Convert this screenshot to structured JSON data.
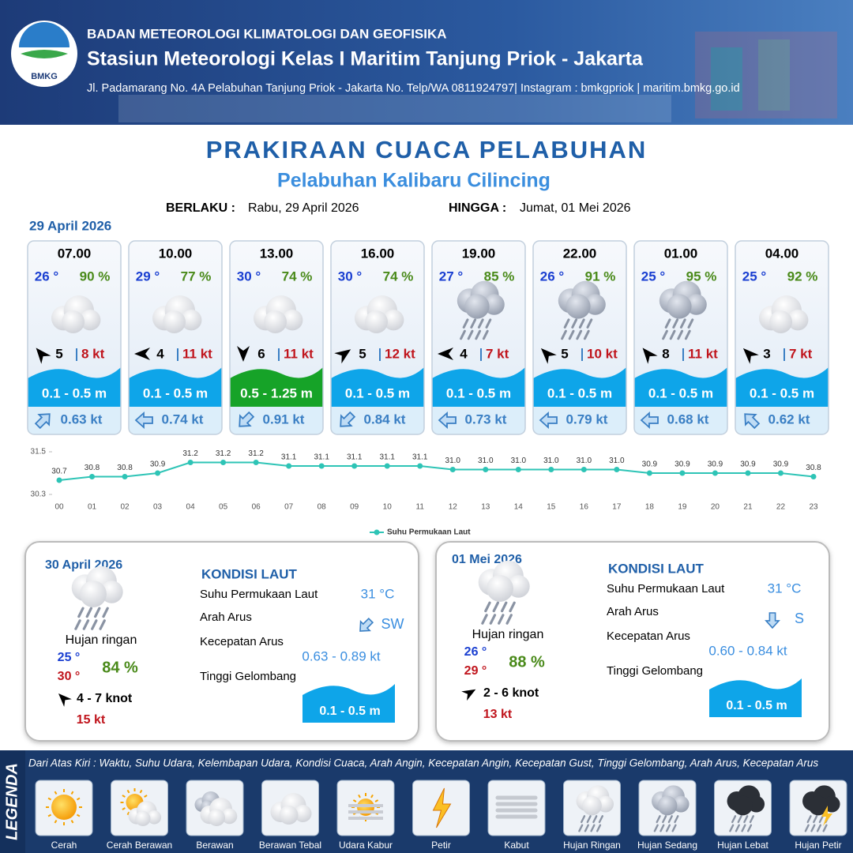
{
  "header": {
    "logo": "BMKG",
    "org": "BADAN METEOROLOGI KLIMATOLOGI DAN GEOFISIKA",
    "station": "Stasiun Meteorologi Kelas I Maritim Tanjung Priok - Jakarta",
    "address": "Jl. Padamarang No. 4A Pelabuhan Tanjung Priok - Jakarta No. Telp/WA 0811924797| Instagram : bmkgpriok | maritim.bmkg.go.id"
  },
  "title": "PRAKIRAAN CUACA PELABUHAN",
  "subtitle": "Pelabuhan Kalibaru Cilincing",
  "valid": {
    "from_label": "BERLAKU :",
    "from": "Rabu, 29 April 2026",
    "to_label": "HINGGA :",
    "to": "Jumat, 01 Mei 2026"
  },
  "day1": {
    "date": "29 April 2026",
    "forecasts": [
      {
        "time": "07.00",
        "temp": "26 °",
        "humidity": "90 %",
        "wind": "5",
        "gust": "8 kt",
        "wave": "0.1 - 0.5 m",
        "wave_color": "#0ea5e9",
        "current": "0.63 kt"
      },
      {
        "time": "10.00",
        "temp": "29 °",
        "humidity": "77 %",
        "wind": "4",
        "gust": "11 kt",
        "wave": "0.1 - 0.5 m",
        "wave_color": "#0ea5e9",
        "current": "0.74 kt"
      },
      {
        "time": "13.00",
        "temp": "30 °",
        "humidity": "74 %",
        "wind": "6",
        "gust": "11 kt",
        "wave": "0.5 - 1.25 m",
        "wave_color": "#16a328",
        "current": "0.91 kt"
      },
      {
        "time": "16.00",
        "temp": "30 °",
        "humidity": "74 %",
        "wind": "5",
        "gust": "12 kt",
        "wave": "0.1 - 0.5 m",
        "wave_color": "#0ea5e9",
        "current": "0.84 kt"
      },
      {
        "time": "19.00",
        "temp": "27 °",
        "humidity": "85 %",
        "wind": "4",
        "gust": "7 kt",
        "wave": "0.1 - 0.5 m",
        "wave_color": "#0ea5e9",
        "current": "0.73 kt"
      },
      {
        "time": "22.00",
        "temp": "26 °",
        "humidity": "91 %",
        "wind": "5",
        "gust": "10 kt",
        "wave": "0.1 - 0.5 m",
        "wave_color": "#0ea5e9",
        "current": "0.79 kt"
      },
      {
        "time": "01.00",
        "temp": "25 °",
        "humidity": "95 %",
        "wind": "8",
        "gust": "11 kt",
        "wave": "0.1 - 0.5 m",
        "wave_color": "#0ea5e9",
        "current": "0.68 kt"
      },
      {
        "time": "04.00",
        "temp": "25 °",
        "humidity": "92 %",
        "wind": "3",
        "gust": "7 kt",
        "wave": "0.1 - 0.5 m",
        "wave_color": "#0ea5e9",
        "current": "0.62 kt"
      }
    ]
  },
  "chart_data": {
    "type": "line",
    "categories": [
      "00",
      "01",
      "02",
      "03",
      "04",
      "05",
      "06",
      "07",
      "08",
      "09",
      "10",
      "11",
      "12",
      "13",
      "14",
      "15",
      "16",
      "17",
      "18",
      "19",
      "20",
      "21",
      "22",
      "23"
    ],
    "series": [
      {
        "name": "Suhu Permukaan Laut",
        "color": "#2ec4b6",
        "values": [
          30.7,
          30.8,
          30.8,
          30.9,
          31.2,
          31.2,
          31.2,
          31.1,
          31.1,
          31.1,
          31.1,
          31.1,
          31,
          31,
          31,
          31,
          31,
          31,
          30.9,
          30.9,
          30.9,
          30.9,
          30.9,
          30.8
        ],
        "value_labels": [
          "30.7",
          "30.8",
          "30.8",
          "30.9",
          "31.2",
          "31.2",
          "31.2",
          "31.1",
          "31.1",
          "31.1",
          "31.1",
          "31.1",
          "31.0",
          "31.0",
          "31.0",
          "31.0",
          "31.0",
          "31.0",
          "30.9",
          "30.9",
          "30.9",
          "30.9",
          "30.9",
          "30.8"
        ]
      }
    ],
    "ylim": [
      30.3,
      31.5
    ],
    "yticks": [
      30.3,
      31.5
    ],
    "legend": "bottom"
  },
  "days": [
    {
      "date": "30 April 2026",
      "condition": "Hujan ringan",
      "temp_min": "25 °",
      "temp_max": "30 °",
      "humidity": "84 %",
      "wind": "4  - 7 knot",
      "gust": "15 kt",
      "sea_title": "KONDISI LAUT",
      "sst_label": "Suhu Permukaan Laut",
      "sst": "31 °C",
      "dir_label": "Arah Arus",
      "dir": "SW",
      "speed_label": "Kecepatan Arus",
      "speed": "0.63  - 0.89 kt",
      "wave_label": "Tinggi Gelombang",
      "wave": "0.1 - 0.5 m"
    },
    {
      "date": "01 Mei 2026",
      "condition": "Hujan ringan",
      "temp_min": "26 °",
      "temp_max": "29 °",
      "humidity": "88 %",
      "wind": "2  - 6 knot",
      "gust": "13 kt",
      "sea_title": "KONDISI LAUT",
      "sst_label": "Suhu Permukaan Laut",
      "sst": "31 °C",
      "dir_label": "Arah Arus",
      "dir": "S",
      "speed_label": "Kecepatan Arus",
      "speed": "0.60  - 0.84 kt",
      "wave_label": "Tinggi Gelombang",
      "wave": "0.1 - 0.5 m"
    }
  ],
  "legend": {
    "title": "LEGENDA",
    "description": "Dari Atas Kiri : Waktu, Suhu Udara, Kelembapan Udara, Kondisi Cuaca, Arah Angin, Kecepatan Angin, Kecepatan Gust, Tinggi Gelombang, Arah Arus, Kecepatan Arus",
    "items": [
      "Cerah",
      "Cerah Berawan",
      "Berawan",
      "Berawan Tebal",
      "Udara Kabur",
      "Petir",
      "Kabut",
      "Hujan Ringan",
      "Hujan Sedang",
      "Hujan Lebat",
      "Hujan Petir"
    ]
  }
}
